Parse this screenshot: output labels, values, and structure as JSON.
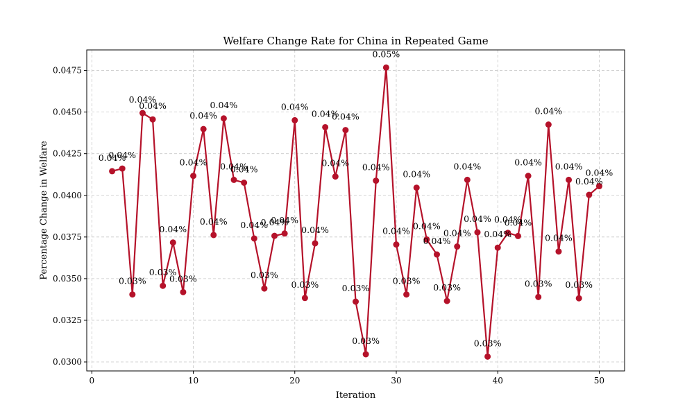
{
  "chart_data": {
    "type": "line",
    "title": "Welfare Change Rate for China in Repeated Game",
    "xlabel": "Iteration",
    "ylabel": "Percentage Change in Welfare",
    "xlim": [
      -0.5,
      52.5
    ],
    "ylim": [
      0.02946,
      0.04873
    ],
    "xticks": [
      0,
      10,
      20,
      30,
      40,
      50
    ],
    "xtick_labels": [
      "0",
      "10",
      "20",
      "30",
      "40",
      "50"
    ],
    "yticks": [
      0.03,
      0.0325,
      0.035,
      0.0375,
      0.04,
      0.0425,
      0.045,
      0.0475
    ],
    "ytick_labels": [
      "0.0300",
      "0.0325",
      "0.0350",
      "0.0375",
      "0.0400",
      "0.0425",
      "0.0450",
      "0.0475"
    ],
    "grid": true,
    "color": "#b5122a",
    "series": [
      {
        "x": [
          2,
          3,
          4,
          5,
          6,
          7,
          8,
          9,
          10,
          11,
          12,
          13,
          14,
          15,
          16,
          17,
          18,
          19,
          20,
          21,
          22,
          23,
          24,
          25,
          26,
          27,
          28,
          29,
          30,
          31,
          32,
          33,
          34,
          35,
          36,
          37,
          38,
          39,
          40,
          41,
          42,
          43,
          44,
          45,
          46,
          47,
          48,
          49,
          50
        ],
        "values": [
          0.04145,
          0.04161,
          0.03405,
          0.04494,
          0.04456,
          0.03457,
          0.03717,
          0.03419,
          0.04117,
          0.04398,
          0.03762,
          0.04462,
          0.04093,
          0.04076,
          0.03741,
          0.03441,
          0.03757,
          0.03771,
          0.04451,
          0.03384,
          0.03712,
          0.04409,
          0.04113,
          0.04392,
          0.03362,
          0.03046,
          0.04088,
          0.04767,
          0.03705,
          0.03405,
          0.04046,
          0.03735,
          0.03645,
          0.03366,
          0.03693,
          0.04093,
          0.03778,
          0.03032,
          0.03686,
          0.03775,
          0.03756,
          0.04117,
          0.0339,
          0.04425,
          0.03663,
          0.04093,
          0.03382,
          0.04003,
          0.04055
        ],
        "data_labels": [
          "0.04%",
          "0.04%",
          "0.03%",
          "0.04%",
          "0.04%",
          "0.03%",
          "0.04%",
          "0.03%",
          "0.04%",
          "0.04%",
          "0.04%",
          "0.04%",
          "0.04%",
          "0.04%",
          "0.04%",
          "0.03%",
          "0.04%",
          "0.04%",
          "0.04%",
          "0.03%",
          "0.04%",
          "0.04%",
          "0.04%",
          "0.04%",
          "0.03%",
          "0.03%",
          "0.04%",
          "0.05%",
          "0.04%",
          "0.03%",
          "0.04%",
          "0.04%",
          "0.04%",
          "0.03%",
          "0.04%",
          "0.04%",
          "0.04%",
          "0.03%",
          "0.04%",
          "0.04%",
          "0.04%",
          "0.04%",
          "0.03%",
          "0.04%",
          "0.04%",
          "0.04%",
          "0.03%",
          "0.04%",
          "0.04%"
        ]
      }
    ]
  }
}
